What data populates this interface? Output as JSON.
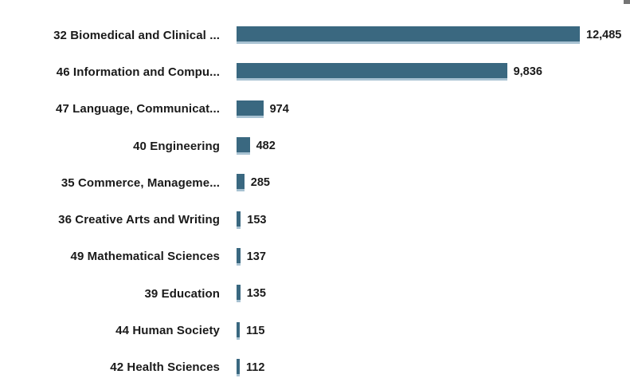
{
  "chart_data": {
    "type": "bar",
    "orientation": "horizontal",
    "title": "",
    "xlabel": "",
    "ylabel": "",
    "grid": false,
    "legend": "none",
    "background": "#ffffff",
    "bar_color": "#3a6880",
    "bar_edge_color": "#a8c2d2",
    "label_color": "#1a1a1a",
    "max_value": 12485,
    "value_range": [
      0,
      12485
    ],
    "categories": [
      "32 Biomedical and Clinical ...",
      "46 Information and Compu...",
      "47 Language, Communicat...",
      "40 Engineering",
      "35 Commerce, Manageme...",
      "36 Creative Arts and Writing",
      "49 Mathematical Sciences",
      "39 Education",
      "44 Human Society",
      "42 Health Sciences"
    ],
    "values": [
      12485,
      9836,
      974,
      482,
      285,
      153,
      137,
      135,
      115,
      112
    ],
    "value_labels": [
      "12,485",
      "9,836",
      "974",
      "482",
      "285",
      "153",
      "137",
      "135",
      "115",
      "112"
    ]
  },
  "decorations": {
    "corner_fragment_color": "#757575"
  }
}
